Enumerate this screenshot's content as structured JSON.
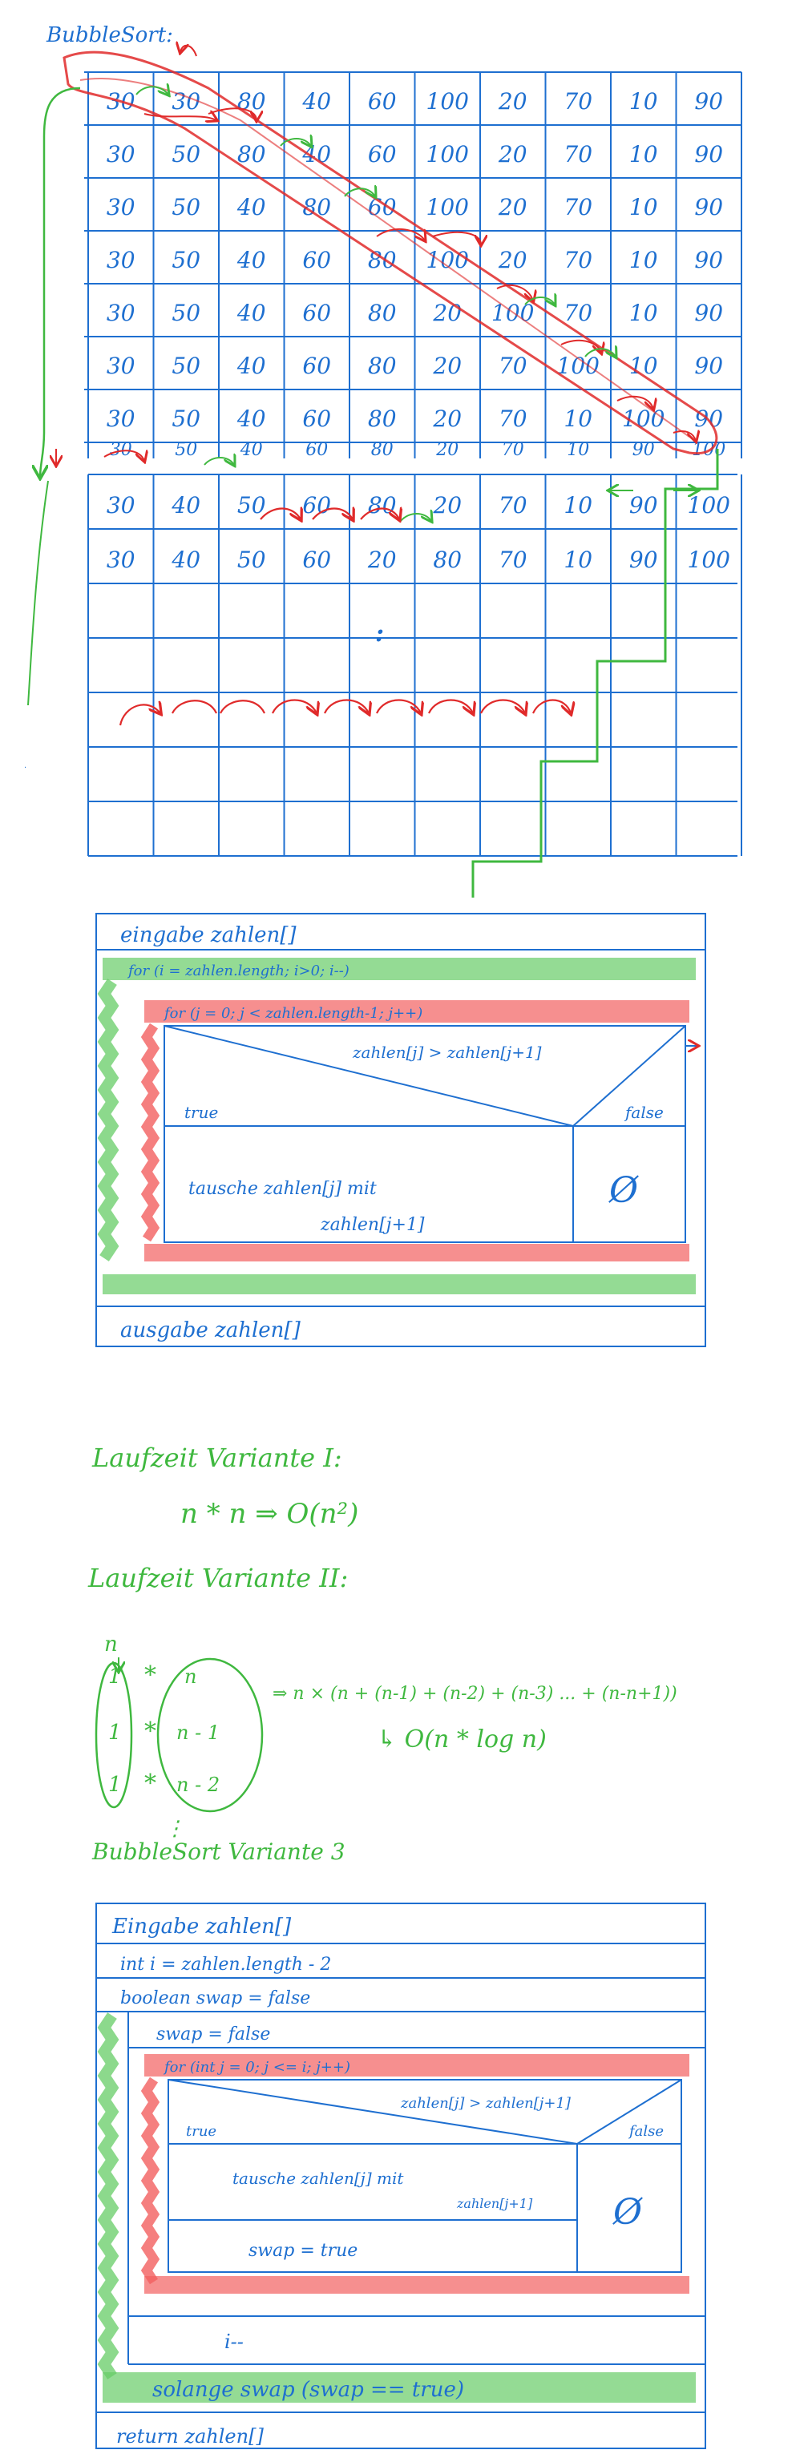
{
  "title": "BubbleSort:",
  "colors": {
    "ink_blue": "#1e6fd0",
    "ink_green": "#3fb83f",
    "ink_red": "#e02a2a",
    "highlight_red": "#f25f5f",
    "highlight_green": "#66cc66"
  },
  "trace": {
    "rows": [
      [
        "30",
        "30",
        "80",
        "40",
        "60",
        "100",
        "20",
        "70",
        "10",
        "90"
      ],
      [
        "30",
        "50",
        "80",
        "40",
        "60",
        "100",
        "20",
        "70",
        "10",
        "90"
      ],
      [
        "30",
        "50",
        "40",
        "80",
        "60",
        "100",
        "20",
        "70",
        "10",
        "90"
      ],
      [
        "30",
        "50",
        "40",
        "60",
        "80",
        "100",
        "20",
        "70",
        "10",
        "90"
      ],
      [
        "30",
        "50",
        "40",
        "60",
        "80",
        "20",
        "100",
        "70",
        "10",
        "90"
      ],
      [
        "30",
        "50",
        "40",
        "60",
        "80",
        "20",
        "70",
        "100",
        "10",
        "90"
      ],
      [
        "30",
        "50",
        "40",
        "60",
        "80",
        "20",
        "70",
        "10",
        "100",
        "90"
      ],
      [
        "30",
        "50",
        "40",
        "60",
        "80",
        "20",
        "70",
        "10",
        "90",
        "100"
      ]
    ],
    "pass2_rows": [
      [
        "30",
        "40",
        "50",
        "60",
        "80",
        "20",
        "70",
        "10",
        "90",
        "100"
      ],
      [
        "30",
        "40",
        "50",
        "60",
        "20",
        "80",
        "70",
        "10",
        "90",
        "100"
      ]
    ],
    "ellipsis": ":"
  },
  "nsd1": {
    "input": "eingabe zahlen[]",
    "outer_loop": "for (i = zahlen.length; i>0; i--)",
    "inner_loop": "for (j = 0; j < zahlen.length-1; j++)",
    "condition": "zahlen[j] > zahlen[j+1]",
    "true_label": "true",
    "false_label": "false",
    "true_action_line1": "tausche zahlen[j] mit",
    "true_action_line2": "zahlen[j+1]",
    "false_action": "Ø",
    "output": "ausgabe zahlen[]"
  },
  "runtime": {
    "v1_title": "Laufzeit Variante I:",
    "v1_formula": "n * n  ⇒  O(n²)",
    "v2_title": "Laufzeit Variante II:",
    "n_label": "n",
    "left_column": [
      "1",
      "1",
      "1"
    ],
    "times": [
      "*",
      "*",
      "*"
    ],
    "right_column": [
      "n",
      "n - 1",
      "n - 2"
    ],
    "sum_formula": "⇒ n × (n + (n-1) + (n-2) + (n-3) ... + (n-n+1))",
    "complexity": "↳ O(n * log n)",
    "dots": "⋮"
  },
  "nsd2": {
    "caption": "BubbleSort Variante 3",
    "input": "Eingabe zahlen[]",
    "init_i": "int i = zahlen.length - 2",
    "init_swap": "boolean swap = false",
    "reset_swap": "swap = false",
    "inner_loop": "for (int j = 0; j <= i; j++)",
    "condition": "zahlen[j] > zahlen[j+1]",
    "true_label": "true",
    "false_label": "false",
    "true_action_line1": "tausche zahlen[j] mit",
    "true_action_line2": "zahlen[j+1]",
    "set_swap": "swap = true",
    "false_action": "Ø",
    "decrement": "i--",
    "loop_condition": "solange swap    (swap == true)",
    "return": "return zahlen[]"
  }
}
